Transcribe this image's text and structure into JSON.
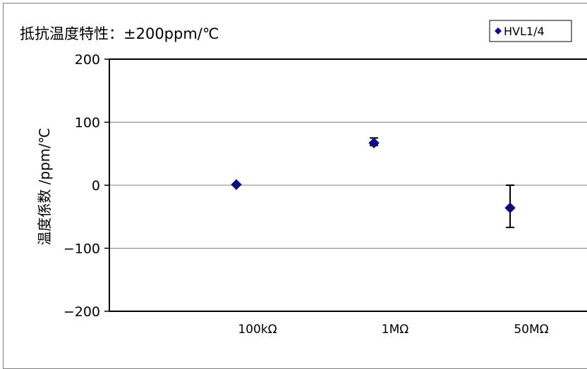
{
  "chart_data": {
    "type": "scatter",
    "title": "抵抗温度特性：±200ppm/℃",
    "ylabel": "温度係数 /ppm/℃",
    "xlabel": "",
    "categories": [
      "100kΩ",
      "1MΩ",
      "50MΩ"
    ],
    "y_ticks": [
      "200",
      "100",
      "0",
      "−100",
      "−200"
    ],
    "ylim": [
      -200,
      200
    ],
    "grid": true,
    "legend_position": "top-right",
    "series": [
      {
        "name": "HVL1/4",
        "color": "#0d0d80",
        "marker": "diamond",
        "points": [
          {
            "category": "100kΩ",
            "y": 1,
            "err_low": 0,
            "err_high": 2
          },
          {
            "category": "1MΩ",
            "y": 67,
            "err_low": 63,
            "err_high": 75
          },
          {
            "category": "50MΩ",
            "y": -36,
            "err_low": -67,
            "err_high": 0
          }
        ]
      }
    ]
  }
}
